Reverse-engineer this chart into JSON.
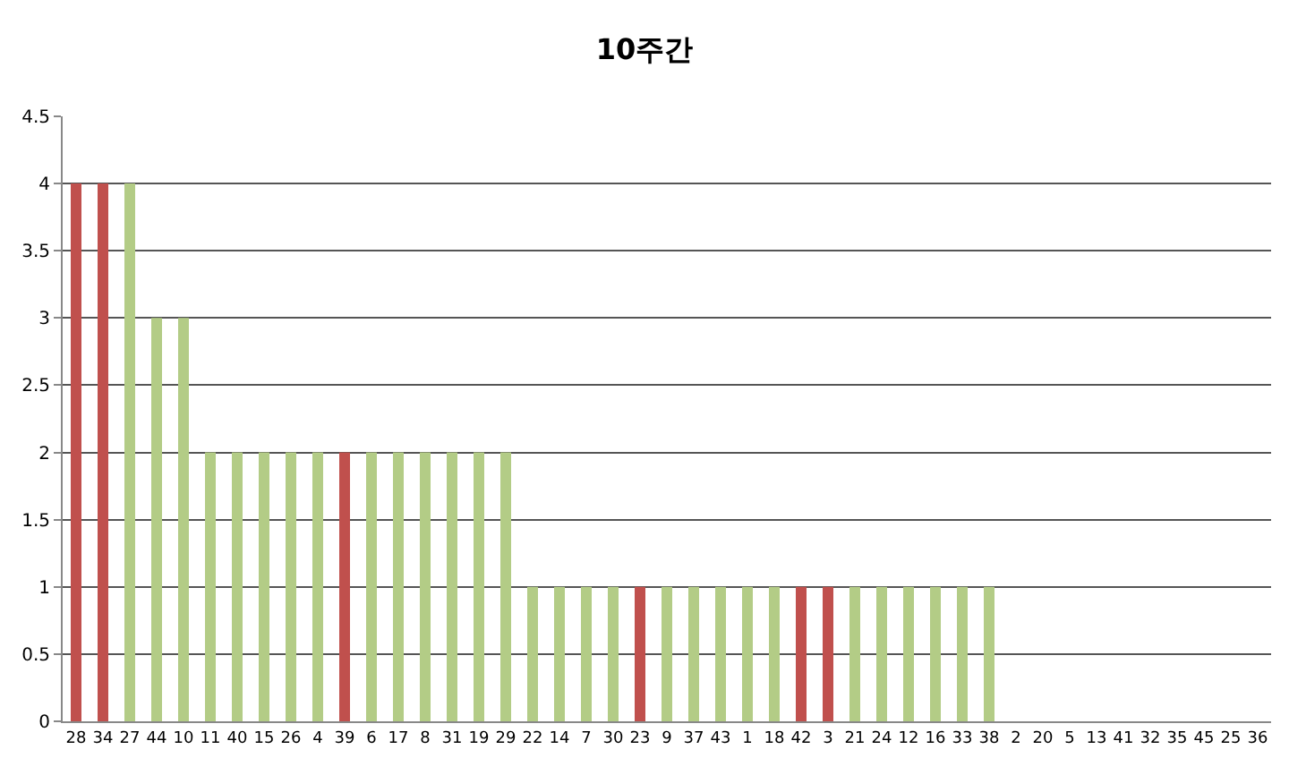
{
  "chart_data": {
    "type": "bar",
    "title": "10주간",
    "categories": [
      "28",
      "34",
      "27",
      "44",
      "10",
      "11",
      "40",
      "15",
      "26",
      "4",
      "39",
      "6",
      "17",
      "8",
      "31",
      "19",
      "29",
      "22",
      "14",
      "7",
      "30",
      "23",
      "9",
      "37",
      "43",
      "1",
      "18",
      "42",
      "3",
      "21",
      "24",
      "12",
      "16",
      "33",
      "38",
      "2",
      "20",
      "5",
      "13",
      "41",
      "32",
      "35",
      "45",
      "25",
      "36"
    ],
    "values": [
      4,
      4,
      4,
      3,
      3,
      2,
      2,
      2,
      2,
      2,
      2,
      2,
      2,
      2,
      2,
      2,
      2,
      1,
      1,
      1,
      1,
      1,
      1,
      1,
      1,
      1,
      1,
      1,
      1,
      1,
      1,
      1,
      1,
      1,
      1,
      0,
      0,
      0,
      0,
      0,
      0,
      0,
      0,
      0,
      0
    ],
    "colors": [
      "#c0504d",
      "#c0504d",
      "#b3cc86",
      "#b3cc86",
      "#b3cc86",
      "#b3cc86",
      "#b3cc86",
      "#b3cc86",
      "#b3cc86",
      "#b3cc86",
      "#c0504d",
      "#b3cc86",
      "#b3cc86",
      "#b3cc86",
      "#b3cc86",
      "#b3cc86",
      "#b3cc86",
      "#b3cc86",
      "#b3cc86",
      "#b3cc86",
      "#b3cc86",
      "#c0504d",
      "#b3cc86",
      "#b3cc86",
      "#b3cc86",
      "#b3cc86",
      "#b3cc86",
      "#c0504d",
      "#c0504d",
      "#b3cc86",
      "#b3cc86",
      "#b3cc86",
      "#b3cc86",
      "#b3cc86",
      "#b3cc86",
      "#b3cc86",
      "#b3cc86",
      "#b3cc86",
      "#b3cc86",
      "#b3cc86",
      "#b3cc86",
      "#b3cc86",
      "#b3cc86",
      "#b3cc86",
      "#b3cc86"
    ],
    "ylim": [
      0,
      4.5
    ],
    "yticks": [
      0,
      0.5,
      1,
      1.5,
      2,
      2.5,
      3,
      3.5,
      4,
      4.5
    ],
    "grid": "y"
  }
}
